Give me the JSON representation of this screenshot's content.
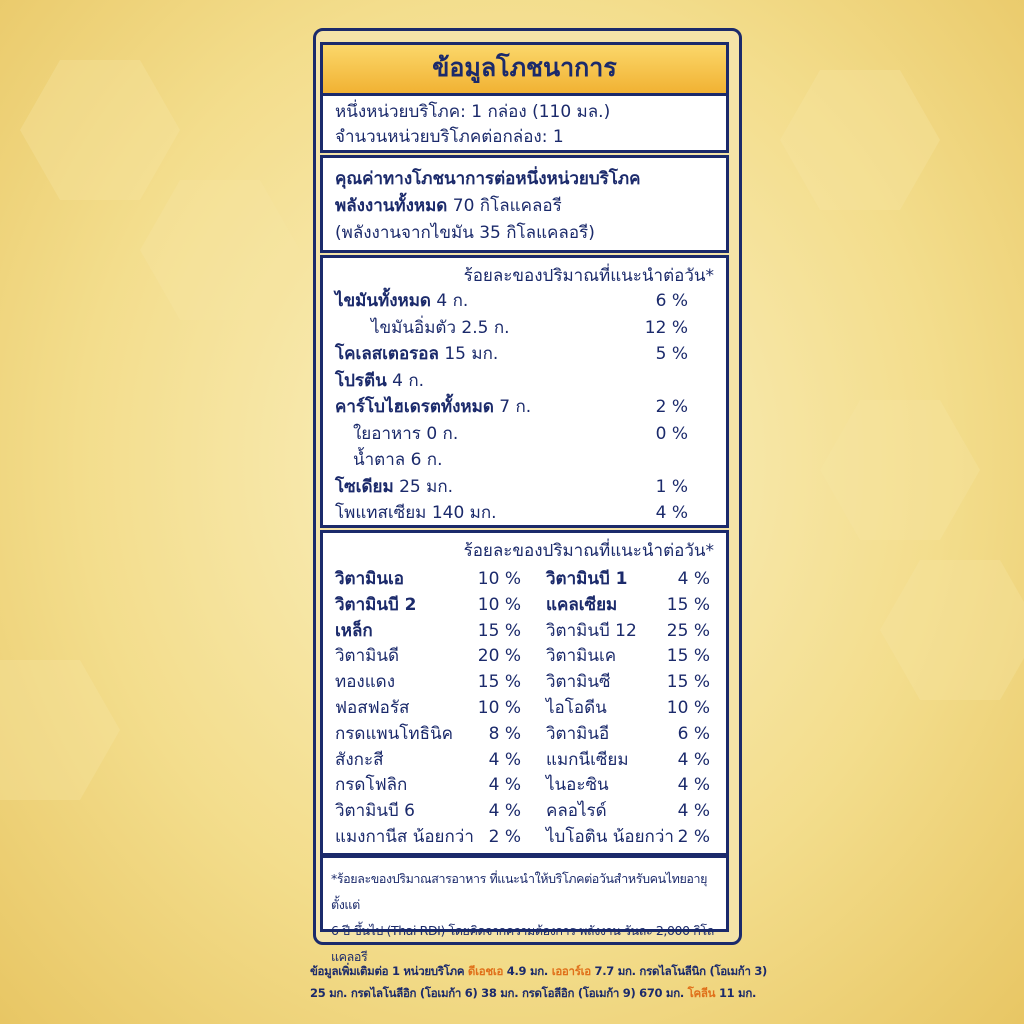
{
  "header": {
    "title": "ข้อมูลโภชนาการ"
  },
  "serving": [
    "หนึ่งหน่วยบริโภค: 1 กล่อง (110 มล.)",
    "จำนวนหน่วยบริโภคต่อกล่อง: 1"
  ],
  "energy": {
    "heading": "คุณค่าทางโภชนาการต่อหนึ่งหน่วยบริโภค",
    "total_label": "พลังงานทั้งหมด",
    "total_value": "70 กิโลแคลอรี",
    "from_fat": "(พลังงานจากไขมัน 35 กิโลแคลอรี)"
  },
  "nutrients": {
    "heading": "ร้อยละของปริมาณที่แนะนำต่อวัน*",
    "rows": [
      {
        "name": "ไขมันทั้งหมด",
        "amount": "4 ก.",
        "percent": "6 %",
        "bold": true,
        "indent": 0
      },
      {
        "name": "ไขมันอิ่มตัว",
        "amount": "2.5 ก.",
        "percent": "12 %",
        "bold": false,
        "indent": 2
      },
      {
        "name": "โคเลสเตอรอล",
        "amount": "15 มก.",
        "percent": "5 %",
        "bold": true,
        "indent": 0
      },
      {
        "name": "โปรตีน",
        "amount": "4 ก.",
        "percent": null,
        "bold": true,
        "indent": 0
      },
      {
        "name": "คาร์โบไฮเดรตทั้งหมด",
        "amount": "7 ก.",
        "percent": "2 %",
        "bold": true,
        "indent": 0
      },
      {
        "name": "ใยอาหาร",
        "amount": "0 ก.",
        "percent": "0 %",
        "bold": false,
        "indent": 1
      },
      {
        "name": "น้ำตาล",
        "amount": "6 ก.",
        "percent": null,
        "bold": false,
        "indent": 1
      },
      {
        "name": "โซเดียม",
        "amount": "25 มก.",
        "percent": "1 %",
        "bold": true,
        "indent": 0
      },
      {
        "name": "โพแทสเซียม",
        "amount": "140 มก.",
        "percent": "4 %",
        "bold": false,
        "indent": 0
      }
    ]
  },
  "vitamins": {
    "heading": "ร้อยละของปริมาณที่แนะนำต่อวัน*",
    "left": [
      {
        "name": "วิตามินเอ",
        "percent": "10 %",
        "bold": true
      },
      {
        "name": "วิตามินบี 2",
        "percent": "10 %",
        "bold": true
      },
      {
        "name": "เหล็ก",
        "percent": "15 %",
        "bold": true
      },
      {
        "name": "วิตามินดี",
        "percent": "20 %",
        "bold": false
      },
      {
        "name": "ทองแดง",
        "percent": "15 %",
        "bold": false
      },
      {
        "name": "ฟอสฟอรัส",
        "percent": "10 %",
        "bold": false
      },
      {
        "name": "กรดแพนโทธินิค",
        "percent": "8 %",
        "bold": false
      },
      {
        "name": "สังกะสี",
        "percent": "4 %",
        "bold": false
      },
      {
        "name": "กรดโฟลิก",
        "percent": "4 %",
        "bold": false
      },
      {
        "name": "วิตามินบี 6",
        "percent": "4 %",
        "bold": false
      },
      {
        "name": "แมงกานีส น้อยกว่า",
        "percent": "2 %",
        "bold": false
      }
    ],
    "right": [
      {
        "name": "วิตามินบี 1",
        "percent": "4 %",
        "bold": true
      },
      {
        "name": "แคลเซียม",
        "percent": "15 %",
        "bold": true
      },
      {
        "name": "วิตามินบี 12",
        "percent": "25 %",
        "bold": false
      },
      {
        "name": "วิตามินเค",
        "percent": "15 %",
        "bold": false
      },
      {
        "name": "วิตามินซี",
        "percent": "15 %",
        "bold": false
      },
      {
        "name": "ไอโอดีน",
        "percent": "10 %",
        "bold": false
      },
      {
        "name": "วิตามินอี",
        "percent": "6 %",
        "bold": false
      },
      {
        "name": "แมกนีเซียม",
        "percent": "4 %",
        "bold": false
      },
      {
        "name": "ไนอะซิน",
        "percent": "4 %",
        "bold": false
      },
      {
        "name": "คลอไรด์",
        "percent": "4 %",
        "bold": false
      },
      {
        "name": "ไบโอติน น้อยกว่า",
        "percent": "2 %",
        "bold": false
      }
    ]
  },
  "footnote": [
    "*ร้อยละของปริมาณสารอาหาร ที่แนะนำให้บริโภคต่อวันสำหรับคนไทยอายุตั้งแต่",
    "6 ปี ขึ้นไป (Thai RDI) โดยคิดจากความต้องการ พลังงาน วันละ 2,000 กิโลแคลอรี"
  ],
  "extra_info": [
    [
      {
        "text": "ข้อมูลเพิ่มเติมต่อ 1 หน่วยบริโภค ",
        "highlight": false
      },
      {
        "text": "ดีเอชเอ",
        "highlight": true
      },
      {
        "text": " 4.9 มก. ",
        "highlight": false
      },
      {
        "text": "เออาร์เอ",
        "highlight": true
      },
      {
        "text": " 7.7 มก. กรดไลโนลีนิก (โอเมก้า 3)",
        "highlight": false
      }
    ],
    [
      {
        "text": "25 มก. กรดไลโนลีอิก (โอเมก้า 6) 38 มก. กรดโอลีอิก (โอเมก้า 9) 670 มก. ",
        "highlight": false
      },
      {
        "text": "โคลีน",
        "highlight": true
      },
      {
        "text": " 11 มก.",
        "highlight": false
      }
    ]
  ]
}
